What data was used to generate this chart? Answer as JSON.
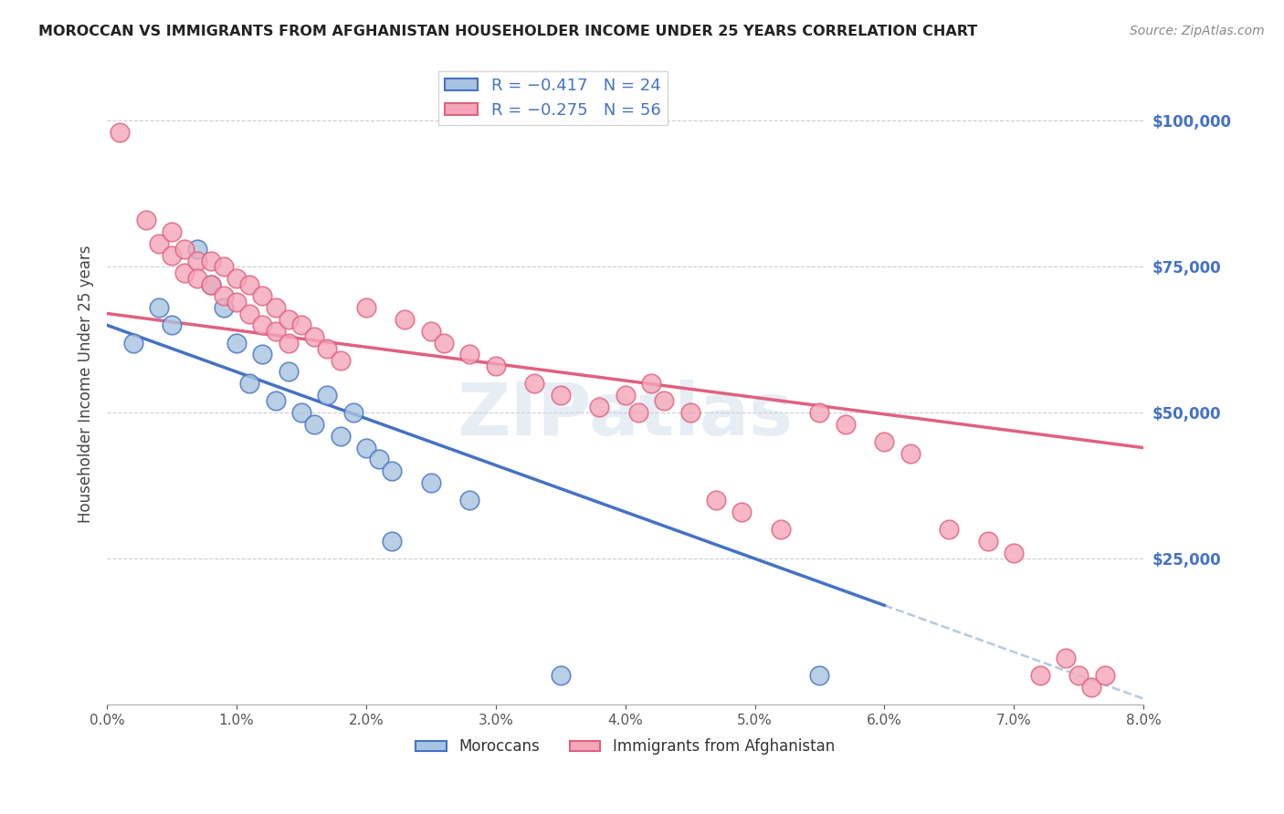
{
  "title": "MOROCCAN VS IMMIGRANTS FROM AFGHANISTAN HOUSEHOLDER INCOME UNDER 25 YEARS CORRELATION CHART",
  "source": "Source: ZipAtlas.com",
  "ylabel": "Householder Income Under 25 years",
  "legend_label1": "R = −0.417   N = 24",
  "legend_label2": "R = −0.275   N = 56",
  "ytick_values": [
    25000,
    50000,
    75000,
    100000
  ],
  "xlim": [
    0.0,
    0.08
  ],
  "ylim": [
    0,
    110000
  ],
  "moroccan_color": "#a8c4e0",
  "afghan_color": "#f4a7b9",
  "moroccan_line_color": "#4472C4",
  "afghan_line_color": "#E06080",
  "moroccan_points": [
    [
      0.002,
      62000
    ],
    [
      0.004,
      68000
    ],
    [
      0.005,
      65000
    ],
    [
      0.007,
      78000
    ],
    [
      0.008,
      72000
    ],
    [
      0.009,
      68000
    ],
    [
      0.01,
      62000
    ],
    [
      0.011,
      55000
    ],
    [
      0.012,
      60000
    ],
    [
      0.013,
      52000
    ],
    [
      0.014,
      57000
    ],
    [
      0.015,
      50000
    ],
    [
      0.016,
      48000
    ],
    [
      0.017,
      53000
    ],
    [
      0.018,
      46000
    ],
    [
      0.019,
      50000
    ],
    [
      0.02,
      44000
    ],
    [
      0.021,
      42000
    ],
    [
      0.022,
      40000
    ],
    [
      0.025,
      38000
    ],
    [
      0.028,
      35000
    ],
    [
      0.022,
      28000
    ],
    [
      0.035,
      5000
    ],
    [
      0.055,
      5000
    ]
  ],
  "afghan_points": [
    [
      0.001,
      98000
    ],
    [
      0.003,
      83000
    ],
    [
      0.004,
      79000
    ],
    [
      0.005,
      81000
    ],
    [
      0.005,
      77000
    ],
    [
      0.006,
      78000
    ],
    [
      0.006,
      74000
    ],
    [
      0.007,
      76000
    ],
    [
      0.007,
      73000
    ],
    [
      0.008,
      76000
    ],
    [
      0.008,
      72000
    ],
    [
      0.009,
      75000
    ],
    [
      0.009,
      70000
    ],
    [
      0.01,
      73000
    ],
    [
      0.01,
      69000
    ],
    [
      0.011,
      72000
    ],
    [
      0.011,
      67000
    ],
    [
      0.012,
      70000
    ],
    [
      0.012,
      65000
    ],
    [
      0.013,
      68000
    ],
    [
      0.013,
      64000
    ],
    [
      0.014,
      66000
    ],
    [
      0.014,
      62000
    ],
    [
      0.015,
      65000
    ],
    [
      0.016,
      63000
    ],
    [
      0.017,
      61000
    ],
    [
      0.018,
      59000
    ],
    [
      0.02,
      68000
    ],
    [
      0.023,
      66000
    ],
    [
      0.025,
      64000
    ],
    [
      0.026,
      62000
    ],
    [
      0.028,
      60000
    ],
    [
      0.03,
      58000
    ],
    [
      0.033,
      55000
    ],
    [
      0.035,
      53000
    ],
    [
      0.038,
      51000
    ],
    [
      0.04,
      53000
    ],
    [
      0.041,
      50000
    ],
    [
      0.042,
      55000
    ],
    [
      0.043,
      52000
    ],
    [
      0.045,
      50000
    ],
    [
      0.047,
      35000
    ],
    [
      0.049,
      33000
    ],
    [
      0.052,
      30000
    ],
    [
      0.055,
      50000
    ],
    [
      0.057,
      48000
    ],
    [
      0.06,
      45000
    ],
    [
      0.062,
      43000
    ],
    [
      0.065,
      30000
    ],
    [
      0.068,
      28000
    ],
    [
      0.07,
      26000
    ],
    [
      0.072,
      5000
    ],
    [
      0.074,
      8000
    ],
    [
      0.075,
      5000
    ],
    [
      0.076,
      3000
    ],
    [
      0.077,
      5000
    ]
  ],
  "line_moroccan_x0": 0.0,
  "line_moroccan_y0": 65000,
  "line_moroccan_x1": 0.06,
  "line_moroccan_y1": 17000,
  "line_afghan_x0": 0.0,
  "line_afghan_y0": 67000,
  "line_afghan_x1": 0.08,
  "line_afghan_y1": 44000
}
